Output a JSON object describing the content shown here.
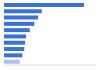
{
  "chart_data": {
    "type": "bar",
    "orientation": "horizontal",
    "categories": [
      null,
      null,
      null,
      null,
      null,
      null,
      null,
      null,
      null,
      null
    ],
    "values": [
      87,
      41,
      37,
      33,
      28,
      24,
      23,
      22,
      20,
      17
    ],
    "colors": [
      "#3a72d8",
      "#3a72d8",
      "#3a72d8",
      "#3a72d8",
      "#3a72d8",
      "#3a72d8",
      "#3a72d8",
      "#3a72d8",
      "#3a72d8",
      "#a9c4ef"
    ],
    "xlim": [
      0,
      100
    ],
    "grid": false,
    "tick_labels": false
  }
}
